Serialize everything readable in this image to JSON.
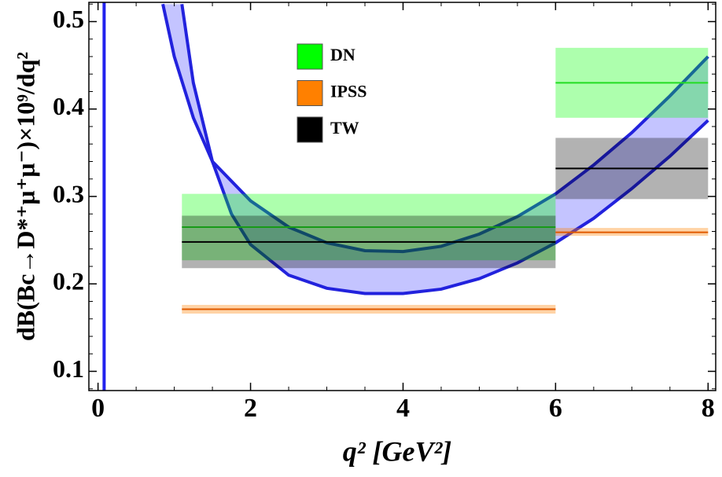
{
  "chart_data": {
    "type": "binned-bands",
    "xlabel": "q² [GeV²]",
    "ylabel": "dB(Bc→D*⁺μ⁺μ⁻)×10⁹/dq²",
    "xlim": [
      -0.12,
      8.1
    ],
    "ylim": [
      0.078,
      0.522
    ],
    "xticks": [
      0,
      2,
      4,
      6,
      8
    ],
    "yticks": [
      0.1,
      0.2,
      0.3,
      0.4,
      0.5
    ],
    "vline": {
      "x": 0.08,
      "color": "#2222ee"
    },
    "band": {
      "color": "#2222dd",
      "fill": "#c4c4ff",
      "upper": {
        "x": [
          0.85,
          1,
          1.25,
          1.5,
          2,
          2.5,
          3,
          3.5,
          4,
          4.5,
          5,
          5.5,
          6,
          6.5,
          7,
          7.5,
          8
        ],
        "values": [
          0.52,
          0.46,
          0.39,
          0.34,
          0.295,
          0.265,
          0.247,
          0.238,
          0.237,
          0.243,
          0.257,
          0.277,
          0.303,
          0.336,
          0.373,
          0.415,
          0.46
        ]
      },
      "lower": {
        "x": [
          1.1,
          1.25,
          1.5,
          1.75,
          2,
          2.5,
          3,
          3.5,
          4,
          4.5,
          5,
          5.5,
          6,
          6.5,
          7,
          7.5,
          8
        ],
        "values": [
          0.52,
          0.43,
          0.34,
          0.28,
          0.245,
          0.21,
          0.195,
          0.189,
          0.189,
          0.194,
          0.206,
          0.224,
          0.247,
          0.275,
          0.309,
          0.346,
          0.387
        ]
      }
    },
    "series": [
      {
        "name": "DN",
        "color": "#00ff00",
        "line": "#22dd22",
        "fill": "#00ff00",
        "opacity": 0.32,
        "bins": [
          {
            "x": [
              1.1,
              6
            ],
            "center": 0.265,
            "low": 0.227,
            "high": 0.303
          },
          {
            "x": [
              6,
              8
            ],
            "center": 0.43,
            "low": 0.39,
            "high": 0.47
          }
        ]
      },
      {
        "name": "IPSS",
        "color": "#ff8000",
        "line": "#e05a00",
        "fill": "#ff8000",
        "opacity": 0.35,
        "bins": [
          {
            "x": [
              1.1,
              6
            ],
            "center": 0.171,
            "low": 0.166,
            "high": 0.176
          },
          {
            "x": [
              6,
              8
            ],
            "center": 0.259,
            "low": 0.255,
            "high": 0.264
          }
        ]
      },
      {
        "name": "TW",
        "color": "#000000",
        "line": "#000000",
        "fill": "#000000",
        "opacity": 0.3,
        "bins": [
          {
            "x": [
              1.1,
              6
            ],
            "center": 0.248,
            "low": 0.218,
            "high": 0.278
          },
          {
            "x": [
              6,
              8
            ],
            "center": 0.332,
            "low": 0.297,
            "high": 0.367
          }
        ]
      }
    ]
  }
}
